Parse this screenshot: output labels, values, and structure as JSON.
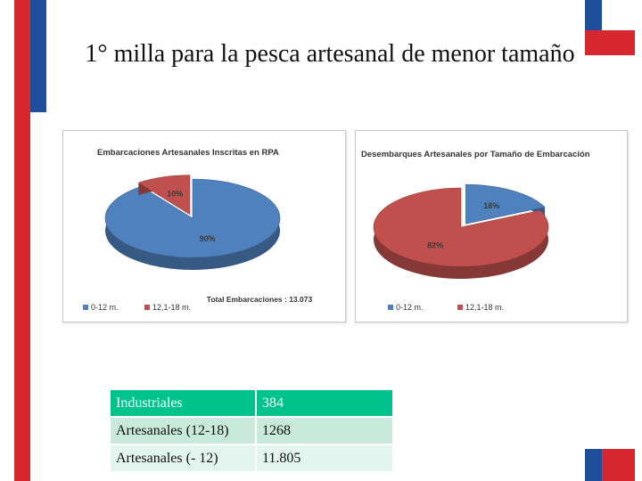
{
  "title": "1° milla para la pesca artesanal de menor tamaño",
  "colors": {
    "blue": "#4f81bd",
    "red": "#c0504d",
    "table_header": "#00c28c",
    "table_row": "#c8e9dc"
  },
  "chart_data": [
    {
      "type": "pie",
      "title": "Embarcaciones Artesanales Inscritas en RPA",
      "categories": [
        "0-12 m.",
        "12,1-18 m."
      ],
      "values": [
        90,
        10
      ],
      "labels": [
        "90%",
        "10%"
      ],
      "legend": [
        "0-12 m.",
        "12,1-18 m."
      ],
      "legend_position": "bottom",
      "annotation": "Total  Embarcaciones : 13.073"
    },
    {
      "type": "pie",
      "title": "Desembarques Artesanales  por  Tamaño de Embarcación",
      "categories": [
        "0-12 m.",
        "12,1-18 m."
      ],
      "values": [
        18,
        82
      ],
      "labels": [
        "18%",
        "82%"
      ],
      "legend": [
        "0-12 m.",
        "12,1-18 m."
      ],
      "legend_position": "bottom"
    }
  ],
  "table": {
    "rows": [
      [
        "Industriales",
        "384"
      ],
      [
        "Artesanales (12-18)",
        "1268"
      ],
      [
        "Artesanales (- 12)",
        "11.805"
      ]
    ]
  }
}
